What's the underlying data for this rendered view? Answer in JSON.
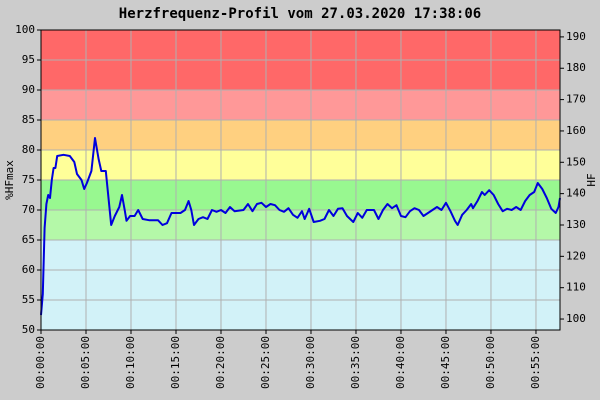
{
  "chart_data": {
    "type": "line",
    "title": "Herzfrequenz-Profil vom 27.03.2020 17:38:06",
    "y_label": "%HFmax",
    "y2_label": "HF",
    "x": [
      0,
      0.2,
      0.4,
      0.6,
      0.8,
      1.0,
      1.2,
      1.4,
      1.6,
      1.8,
      2.5,
      3.2,
      3.7,
      4.0,
      4.5,
      4.8,
      5.1,
      5.6,
      6.0,
      6.4,
      6.7,
      7.2,
      7.5,
      7.8,
      8.2,
      8.7,
      9.0,
      9.3,
      9.5,
      9.9,
      10.4,
      10.8,
      11.3,
      12,
      13,
      13.5,
      14,
      14.5,
      15.5,
      16,
      16.4,
      16.7,
      17,
      17.5,
      18,
      18.5,
      19,
      19.5,
      20,
      20.5,
      21,
      21.5,
      22.5,
      23,
      23.5,
      24,
      24.5,
      25,
      25.5,
      26,
      26.5,
      27,
      27.5,
      28,
      28.5,
      29,
      29.3,
      29.8,
      30.3,
      31,
      31.5,
      32,
      32.5,
      33,
      33.5,
      34,
      34.7,
      35.2,
      35.7,
      36.2,
      37,
      37.5,
      38,
      38.5,
      39,
      39.5,
      40,
      40.5,
      41,
      41.5,
      42,
      42.5,
      43,
      43.5,
      44,
      44.5,
      45,
      45.5,
      46,
      46.3,
      46.8,
      47.3,
      47.8,
      48,
      48.5,
      49,
      49.3,
      49.8,
      50.3,
      50.8,
      51.3,
      51.8,
      52.3,
      52.8,
      53.3,
      53.8,
      54.3,
      54.8,
      55.2,
      55.7,
      56.2,
      56.7,
      57.2,
      57.5,
      57.67
    ],
    "series": [
      {
        "color": "#0000dd",
        "values": [
          52.5,
          56,
          67,
          71,
          72.5,
          72,
          75,
          77,
          77,
          79,
          79.2,
          79,
          78,
          76,
          75,
          73.5,
          74.5,
          76.5,
          82,
          78.5,
          76.5,
          76.5,
          72,
          67.5,
          69,
          70.5,
          72.5,
          70,
          68.2,
          69,
          69,
          70,
          68.5,
          68.3,
          68.3,
          67.5,
          67.8,
          69.5,
          69.5,
          70,
          71.5,
          70,
          67.5,
          68.5,
          68.8,
          68.5,
          70,
          69.7,
          70,
          69.5,
          70.5,
          69.8,
          70,
          71,
          69.8,
          71,
          71.2,
          70.5,
          71,
          70.8,
          70,
          69.7,
          70.3,
          69.2,
          68.7,
          69.8,
          68.5,
          70.2,
          68,
          68.2,
          68.5,
          70,
          69,
          70.2,
          70.3,
          69,
          68,
          69.5,
          68.7,
          70,
          70,
          68.5,
          70,
          71,
          70.3,
          70.8,
          69,
          68.8,
          69.8,
          70.3,
          70,
          69,
          69.5,
          70,
          70.5,
          70,
          71.2,
          69.8,
          68.2,
          67.5,
          69.2,
          70,
          71,
          70.3,
          71.5,
          73,
          72.5,
          73.3,
          72.5,
          71,
          69.8,
          70.2,
          70,
          70.5,
          70,
          71.5,
          72.5,
          73,
          74.5,
          73.5,
          72,
          70.2,
          69.5,
          70.5,
          72
        ]
      }
    ],
    "xlim": [
      0,
      57.67
    ],
    "xticks": [
      {
        "value": 0,
        "label": "00:00:00"
      },
      {
        "value": 5,
        "label": "00:05:00"
      },
      {
        "value": 10,
        "label": "00:10:00"
      },
      {
        "value": 15,
        "label": "00:15:00"
      },
      {
        "value": 20,
        "label": "00:20:00"
      },
      {
        "value": 25,
        "label": "00:25:00"
      },
      {
        "value": 30,
        "label": "00:30:00"
      },
      {
        "value": 35,
        "label": "00:35:00"
      },
      {
        "value": 40,
        "label": "00:40:00"
      },
      {
        "value": 45,
        "label": "00:45:00"
      },
      {
        "value": 50,
        "label": "00:50:00"
      },
      {
        "value": 55,
        "label": "00:55:00"
      }
    ],
    "ylim": [
      50,
      100
    ],
    "yticks": [
      50,
      55,
      60,
      65,
      70,
      75,
      80,
      85,
      90,
      95,
      100
    ],
    "y2lim": [
      96.5,
      192.2
    ],
    "y2ticks": [
      100,
      110,
      120,
      130,
      140,
      150,
      160,
      170,
      180,
      190
    ],
    "zones": [
      {
        "from": 50,
        "to": 65,
        "color": "#d2f2f8"
      },
      {
        "from": 65,
        "to": 70,
        "color": "#b4f8a8"
      },
      {
        "from": 70,
        "to": 75,
        "color": "#98f890"
      },
      {
        "from": 75,
        "to": 80,
        "color": "#ffff99"
      },
      {
        "from": 80,
        "to": 85,
        "color": "#ffd080"
      },
      {
        "from": 85,
        "to": 90,
        "color": "#ff9898"
      },
      {
        "from": 90,
        "to": 100,
        "color": "#ff6868"
      }
    ],
    "grid": true
  }
}
